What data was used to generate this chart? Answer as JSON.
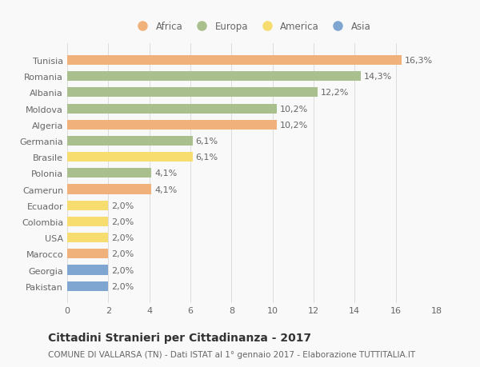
{
  "countries": [
    "Tunisia",
    "Romania",
    "Albania",
    "Moldova",
    "Algeria",
    "Germania",
    "Brasile",
    "Polonia",
    "Camerun",
    "Ecuador",
    "Colombia",
    "USA",
    "Marocco",
    "Georgia",
    "Pakistan"
  ],
  "values": [
    16.3,
    14.3,
    12.2,
    10.2,
    10.2,
    6.1,
    6.1,
    4.1,
    4.1,
    2.0,
    2.0,
    2.0,
    2.0,
    2.0,
    2.0
  ],
  "labels": [
    "16,3%",
    "14,3%",
    "12,2%",
    "10,2%",
    "10,2%",
    "6,1%",
    "6,1%",
    "4,1%",
    "4,1%",
    "2,0%",
    "2,0%",
    "2,0%",
    "2,0%",
    "2,0%",
    "2,0%"
  ],
  "continents": [
    "Africa",
    "Europa",
    "Europa",
    "Europa",
    "Africa",
    "Europa",
    "America",
    "Europa",
    "Africa",
    "America",
    "America",
    "America",
    "Africa",
    "Asia",
    "Asia"
  ],
  "colors": {
    "Africa": "#F0B27A",
    "Europa": "#AABF8E",
    "America": "#F7DC6F",
    "Asia": "#7EA6D1"
  },
  "legend_order": [
    "Africa",
    "Europa",
    "America",
    "Asia"
  ],
  "xlim": [
    0,
    18
  ],
  "xticks": [
    0,
    2,
    4,
    6,
    8,
    10,
    12,
    14,
    16,
    18
  ],
  "title": "Cittadini Stranieri per Cittadinanza - 2017",
  "subtitle": "COMUNE DI VALLARSA (TN) - Dati ISTAT al 1° gennaio 2017 - Elaborazione TUTTITALIA.IT",
  "bg_color": "#f9f9f9",
  "bar_height": 0.6,
  "grid_color": "#dddddd",
  "text_color": "#666666",
  "label_fontsize": 8,
  "tick_fontsize": 8,
  "title_fontsize": 10,
  "subtitle_fontsize": 7.5
}
